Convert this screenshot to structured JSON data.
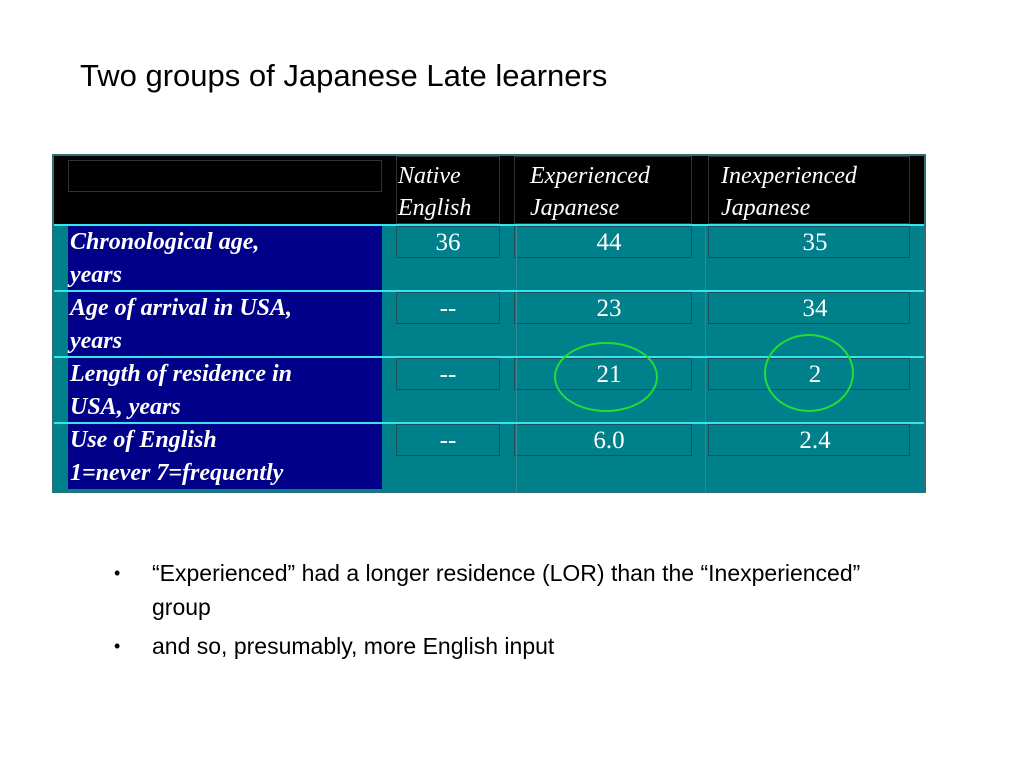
{
  "slide": {
    "title": "Two groups of Japanese Late learners"
  },
  "table": {
    "columns": [
      "Native\nEnglish",
      "Experienced\nJapanese",
      "Inexperienced\nJapanese"
    ],
    "rows": [
      {
        "label": "Chronological age,\nyears",
        "values": [
          "36",
          "44",
          "35"
        ]
      },
      {
        "label": "Age of arrival in USA,\nyears",
        "values": [
          "--",
          "23",
          "34"
        ]
      },
      {
        "label": "Length of residence in\nUSA, years",
        "values": [
          "--",
          "21",
          "2"
        ]
      },
      {
        "label": "Use of English\n1=never 7=frequently",
        "values": [
          "--",
          "6.0",
          "2.4"
        ]
      }
    ],
    "highlighted_cells": [
      "21",
      "2"
    ],
    "colors": {
      "table_bg": "#00808a",
      "header_bg": "#000000",
      "label_bg": "#000088",
      "row_separator": "#33e6f0",
      "highlight_circle": "#22dd33"
    }
  },
  "bullets": [
    "“Experienced” had a longer residence (LOR) than the “Inexperienced” group",
    "and so, presumably, more English input"
  ]
}
